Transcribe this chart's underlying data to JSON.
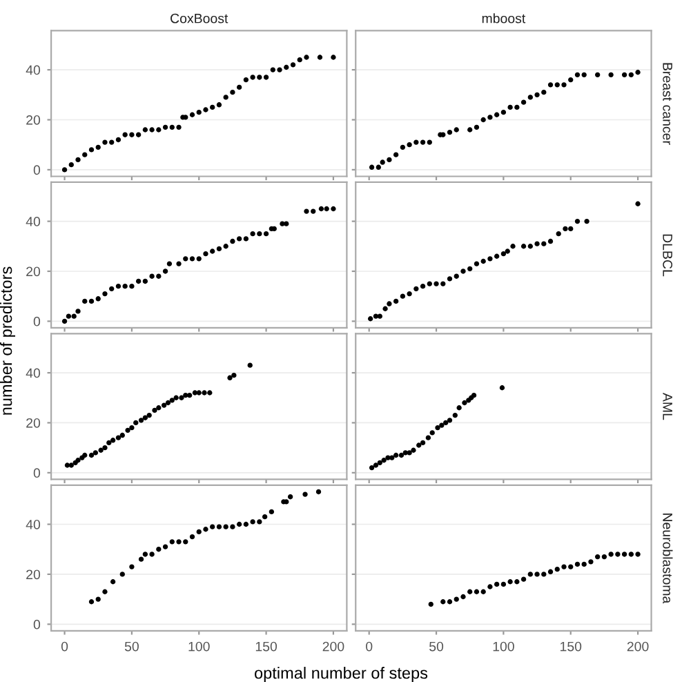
{
  "chart_data": [
    {
      "type": "scatter",
      "title": "CoxBoost",
      "xlim": [
        -10,
        210
      ],
      "ylim": [
        -2.65,
        55.65
      ],
      "xticks": [
        0,
        50,
        100,
        150,
        200
      ],
      "yticks": [
        0,
        20,
        40
      ],
      "grid": "y",
      "marker": "circle",
      "tick_labels": "y",
      "color": "#000000",
      "x": [
        0,
        5,
        10,
        15,
        20,
        25,
        30,
        35,
        40,
        45,
        50,
        55,
        60,
        65,
        70,
        75,
        80,
        85,
        88,
        90,
        95,
        100,
        105,
        110,
        115,
        120,
        125,
        130,
        135,
        140,
        145,
        150,
        155,
        160,
        165,
        170,
        175,
        180,
        190,
        200
      ],
      "values": [
        0,
        2,
        4,
        6,
        8,
        9,
        11,
        11,
        12,
        14,
        14,
        14,
        16,
        16,
        16,
        17,
        17,
        17,
        21,
        21,
        22,
        23,
        24,
        25,
        26,
        29,
        31,
        33,
        36,
        37,
        37,
        37,
        40,
        40,
        41,
        42,
        44,
        45,
        45,
        45
      ]
    },
    {
      "type": "scatter",
      "title": "mboost",
      "annotations": [
        "Breast cancer"
      ],
      "xlim": [
        -10,
        210
      ],
      "ylim": [
        -2.65,
        55.65
      ],
      "xticks": [
        0,
        50,
        100,
        150,
        200
      ],
      "yticks": [
        0,
        20,
        40
      ],
      "grid": "y",
      "marker": "circle",
      "tick_labels": false,
      "color": "#000000",
      "x": [
        2,
        7,
        10,
        15,
        20,
        25,
        30,
        35,
        40,
        45,
        53,
        55,
        60,
        65,
        75,
        80,
        85,
        90,
        95,
        100,
        105,
        110,
        115,
        120,
        125,
        130,
        135,
        140,
        145,
        150,
        155,
        160,
        170,
        180,
        190,
        195,
        200
      ],
      "values": [
        1,
        1,
        3,
        4,
        6,
        9,
        10,
        11,
        11,
        11,
        14,
        14,
        15,
        16,
        16,
        17,
        20,
        21,
        22,
        23,
        25,
        25,
        27,
        29,
        30,
        31,
        34,
        34,
        34,
        36,
        38,
        38,
        38,
        38,
        38,
        38,
        39
      ]
    },
    {
      "type": "scatter",
      "ylabel": "number of predictors",
      "xlim": [
        -10,
        210
      ],
      "ylim": [
        -2.65,
        55.65
      ],
      "xticks": [
        0,
        50,
        100,
        150,
        200
      ],
      "yticks": [
        0,
        20,
        40
      ],
      "grid": "y",
      "marker": "circle",
      "tick_labels": "y",
      "color": "#000000",
      "x": [
        0,
        3,
        7,
        10,
        15,
        20,
        25,
        30,
        35,
        40,
        45,
        50,
        55,
        60,
        65,
        70,
        75,
        78,
        85,
        90,
        95,
        100,
        105,
        110,
        115,
        120,
        125,
        130,
        135,
        140,
        145,
        150,
        154,
        156,
        162,
        165,
        180,
        185,
        191,
        195,
        200
      ],
      "values": [
        0,
        2,
        2,
        4,
        8,
        8,
        9,
        11,
        13,
        14,
        14,
        14,
        16,
        16,
        18,
        18,
        20,
        23,
        23,
        25,
        25,
        25,
        27,
        28,
        29,
        30,
        32,
        33,
        33,
        35,
        35,
        35,
        37,
        37,
        39,
        39,
        44,
        44,
        45,
        45,
        45
      ]
    },
    {
      "type": "scatter",
      "annotations": [
        "DLBCL"
      ],
      "xlim": [
        -10,
        210
      ],
      "ylim": [
        -2.65,
        55.65
      ],
      "xticks": [
        0,
        50,
        100,
        150,
        200
      ],
      "yticks": [
        0,
        20,
        40
      ],
      "grid": "y",
      "marker": "circle",
      "tick_labels": false,
      "color": "#000000",
      "x": [
        1,
        5,
        8,
        12,
        15,
        20,
        25,
        30,
        35,
        40,
        45,
        50,
        55,
        60,
        65,
        70,
        75,
        80,
        85,
        90,
        95,
        100,
        103,
        107,
        115,
        120,
        125,
        130,
        135,
        141,
        146,
        150,
        155,
        162,
        200
      ],
      "values": [
        1,
        2,
        2,
        5,
        7,
        8,
        10,
        11,
        13,
        14,
        15,
        15,
        15,
        17,
        18,
        20,
        21,
        23,
        24,
        25,
        26,
        27,
        28,
        30,
        30,
        30,
        31,
        31,
        32,
        35,
        37,
        37,
        40,
        40,
        47
      ]
    },
    {
      "type": "scatter",
      "xlim": [
        -10,
        210
      ],
      "ylim": [
        -2.65,
        55.65
      ],
      "xticks": [
        0,
        50,
        100,
        150,
        200
      ],
      "yticks": [
        0,
        20,
        40
      ],
      "grid": "y",
      "marker": "circle",
      "tick_labels": "y",
      "color": "#000000",
      "x": [
        2,
        5,
        8,
        10,
        13,
        15,
        20,
        23,
        27,
        30,
        33,
        36,
        40,
        43,
        47,
        50,
        53,
        57,
        60,
        63,
        67,
        70,
        74,
        77,
        80,
        83,
        87,
        90,
        93,
        97,
        100,
        104,
        108,
        123,
        126,
        138
      ],
      "values": [
        3,
        3,
        4,
        5,
        6,
        7,
        7,
        8,
        9,
        10,
        12,
        13,
        14,
        15,
        17,
        18,
        20,
        21,
        22,
        23,
        25,
        26,
        27,
        28,
        29,
        30,
        30,
        31,
        31,
        32,
        32,
        32,
        32,
        38,
        39,
        43
      ]
    },
    {
      "type": "scatter",
      "annotations": [
        "AML"
      ],
      "xlim": [
        -10,
        210
      ],
      "ylim": [
        -2.65,
        55.65
      ],
      "xticks": [
        0,
        50,
        100,
        150,
        200
      ],
      "yticks": [
        0,
        20,
        40
      ],
      "grid": "y",
      "marker": "circle",
      "tick_labels": false,
      "color": "#000000",
      "x": [
        2,
        5,
        8,
        11,
        14,
        17,
        20,
        24,
        27,
        30,
        33,
        37,
        40,
        44,
        47,
        51,
        54,
        57,
        60,
        64,
        67,
        71,
        74,
        76,
        78,
        99
      ],
      "values": [
        2,
        3,
        4,
        5,
        6,
        6,
        7,
        7,
        8,
        8,
        9,
        11,
        12,
        14,
        16,
        18,
        19,
        20,
        21,
        23,
        26,
        28,
        29,
        30,
        31,
        34
      ]
    },
    {
      "type": "scatter",
      "xlabel": "optimal number of steps",
      "xlim": [
        -10,
        210
      ],
      "ylim": [
        -2.65,
        55.65
      ],
      "xticks": [
        0,
        50,
        100,
        150,
        200
      ],
      "yticks": [
        0,
        20,
        40
      ],
      "grid": "y",
      "marker": "circle",
      "color": "#000000",
      "x": [
        20,
        25,
        30,
        36,
        43,
        50,
        57,
        60,
        65,
        70,
        75,
        80,
        85,
        90,
        95,
        100,
        105,
        110,
        115,
        120,
        125,
        130,
        135,
        140,
        145,
        149,
        154,
        163,
        165,
        168,
        179,
        189
      ],
      "values": [
        9,
        10,
        13,
        17,
        20,
        23,
        26,
        28,
        28,
        30,
        31,
        33,
        33,
        33,
        35,
        37,
        38,
        39,
        39,
        39,
        39,
        40,
        40,
        41,
        41,
        43,
        45,
        49,
        49,
        51,
        52,
        53
      ]
    },
    {
      "type": "scatter",
      "annotations": [
        "Neuroblastoma"
      ],
      "xlim": [
        -10,
        210
      ],
      "ylim": [
        -2.65,
        55.65
      ],
      "xticks": [
        0,
        50,
        100,
        150,
        200
      ],
      "yticks": [
        0,
        20,
        40
      ],
      "grid": "y",
      "marker": "circle",
      "tick_labels": "x",
      "color": "#000000",
      "x": [
        46,
        55,
        60,
        65,
        70,
        75,
        80,
        85,
        90,
        95,
        100,
        105,
        110,
        115,
        120,
        125,
        130,
        135,
        140,
        145,
        150,
        155,
        160,
        165,
        170,
        175,
        180,
        185,
        190,
        195,
        200
      ],
      "values": [
        8,
        9,
        9,
        10,
        11,
        13,
        13,
        13,
        15,
        16,
        16,
        17,
        17,
        18,
        20,
        20,
        20,
        21,
        22,
        23,
        23,
        24,
        24,
        25,
        27,
        27,
        28,
        28,
        28,
        28,
        28
      ]
    }
  ]
}
